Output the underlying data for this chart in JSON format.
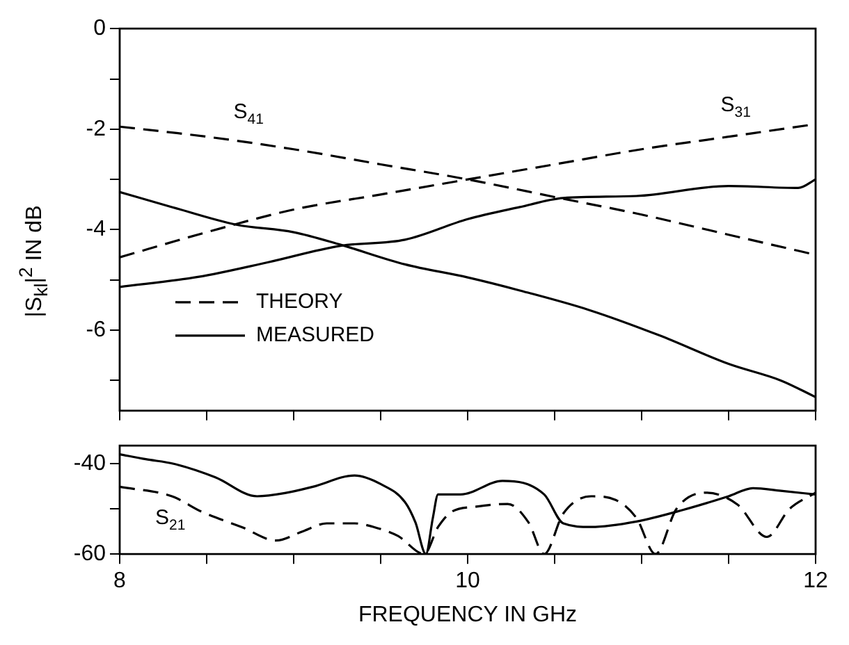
{
  "chart_data": [
    {
      "type": "line",
      "ylabel": "|S$_{kl}$|$^{2}$ IN dB",
      "xlim": [
        8,
        12
      ],
      "ylim": [
        -7.6,
        0
      ],
      "xticks": [
        {
          "value": 8,
          "label": null
        },
        {
          "value": 8.5,
          "label": null
        },
        {
          "value": 9,
          "label": null
        },
        {
          "value": 9.5,
          "label": null
        },
        {
          "value": 10,
          "label": null
        },
        {
          "value": 10.5,
          "label": null
        },
        {
          "value": 11,
          "label": null
        },
        {
          "value": 11.5,
          "label": null
        },
        {
          "value": 12,
          "label": null
        }
      ],
      "yticks": [
        0,
        {
          "value": -1,
          "label": null
        },
        -2,
        {
          "value": -3,
          "label": null
        },
        -4,
        {
          "value": -5,
          "label": null
        },
        -6,
        {
          "value": -7,
          "label": null
        }
      ],
      "tick_labels": "y",
      "legend": "bottom left",
      "annotations": [
        {
          "text": "S$_{41}$",
          "x": 8.75,
          "y": -2.28
        },
        {
          "text": "S$_{31}$",
          "x": 11.55,
          "y": -2.13
        }
      ],
      "series": [
        {
          "name": "THEORY",
          "color": "#000000",
          "line_style": "dashed",
          "x": [
            8,
            8.5,
            9,
            9.5,
            10,
            10.5,
            11,
            11.5,
            12
          ],
          "values": [
            -1.95,
            -2.15,
            -2.4,
            -2.7,
            -3.0,
            -3.35,
            -3.7,
            -4.1,
            -4.5
          ]
        },
        {
          "color": "#000000",
          "line_style": "dashed",
          "x": [
            8,
            8.5,
            9,
            9.5,
            10,
            10.5,
            11,
            11.5,
            12
          ],
          "values": [
            -4.55,
            -4.05,
            -3.6,
            -3.3,
            -3.0,
            -2.7,
            -2.4,
            -2.15,
            -1.9
          ]
        },
        {
          "name": "MEASURED",
          "color": "#000000",
          "line_style": "solid",
          "x": [
            8,
            8.3,
            8.67,
            9.0,
            9.27,
            9.64,
            10.0,
            10.3,
            10.7,
            11.1,
            11.5,
            11.8,
            12
          ],
          "values": [
            -3.25,
            -3.55,
            -3.9,
            -4.05,
            -4.3,
            -4.69,
            -4.95,
            -5.21,
            -5.6,
            -6.1,
            -6.67,
            -7.0,
            -7.33
          ]
        },
        {
          "color": "#000000",
          "line_style": "solid",
          "x": [
            8,
            8.45,
            8.85,
            9.27,
            9.64,
            10.0,
            10.3,
            10.55,
            10.97,
            11.5,
            11.9,
            12
          ],
          "values": [
            -5.14,
            -4.94,
            -4.65,
            -4.32,
            -4.2,
            -3.79,
            -3.55,
            -3.37,
            -3.33,
            -3.13,
            -3.17,
            -3.0
          ]
        }
      ]
    },
    {
      "type": "line",
      "xlabel": "FREQUENCY IN GHz",
      "xlim": [
        8,
        12
      ],
      "ylim": [
        -60,
        -36
      ],
      "xticks": [
        8,
        {
          "value": 8.5,
          "label": null
        },
        {
          "value": 9,
          "label": null
        },
        {
          "value": 9.5,
          "label": null
        },
        10,
        {
          "value": 10.5,
          "label": null
        },
        {
          "value": 11,
          "label": null
        },
        {
          "value": 11.5,
          "label": null
        },
        12
      ],
      "yticks": [
        -40,
        {
          "value": -50,
          "label": null
        },
        -60
      ],
      "annotations": [
        {
          "text": "S$_{21}$",
          "x": 8.3,
          "y": -47.2
        }
      ],
      "series": [
        {
          "color": "#000000",
          "line_style": "dashed",
          "x": [
            8,
            8.3,
            8.47,
            8.7,
            8.9,
            9.05,
            9.19,
            9.35,
            9.46,
            9.6,
            9.75,
            9.83,
            9.91,
            10.05,
            10.23,
            10.35,
            10.44,
            10.55,
            10.71,
            10.85,
            10.97,
            11.08,
            11.2,
            11.37,
            11.55,
            11.72,
            11.85,
            12
          ],
          "values": [
            -45.1,
            -47.2,
            -50.6,
            -54,
            -57,
            -55,
            -53.2,
            -53.2,
            -54,
            -56,
            -60,
            -54,
            -50.6,
            -49.5,
            -48.9,
            -53,
            -60,
            -51,
            -47.2,
            -48,
            -52,
            -60,
            -50,
            -46.4,
            -49,
            -56.2,
            -50,
            -46.4
          ]
        },
        {
          "color": "#000000",
          "line_style": "solid",
          "x": [
            8,
            8.15,
            8.31,
            8.55,
            8.79,
            8.95,
            9.11,
            9.35,
            9.5,
            9.64,
            9.7,
            9.76,
            9.8,
            9.83,
            9.96,
            10.2,
            10.44,
            10.55,
            10.71,
            10.97,
            11.24,
            11.5,
            11.64,
            11.8,
            12
          ],
          "values": [
            -37.9,
            -39,
            -40,
            -43,
            -47.2,
            -46.5,
            -45.1,
            -42.6,
            -44.5,
            -48.5,
            -53,
            -60,
            -52,
            -46.8,
            -46.8,
            -43.8,
            -46.8,
            -53.2,
            -54,
            -52.8,
            -50.2,
            -47.2,
            -45.4,
            -46,
            -46.8
          ]
        }
      ]
    }
  ]
}
